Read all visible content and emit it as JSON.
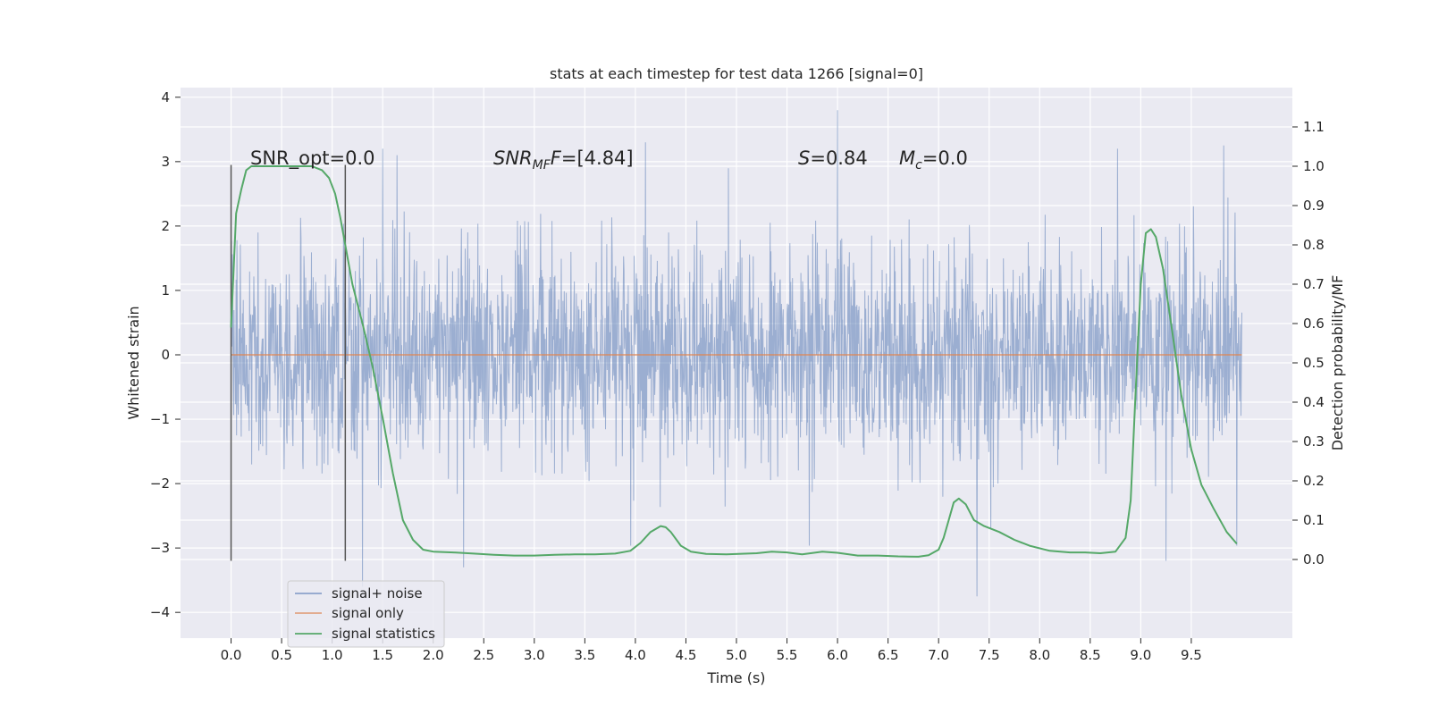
{
  "chart_data": {
    "type": "line",
    "title": "stats at each timestep for test data 1266 [signal=0]",
    "xlabel": "Time (s)",
    "ylabel": "Whitened strain",
    "ylabel_right": "Detection probability/MF",
    "xlim": [
      -0.5,
      10.5
    ],
    "ylim": [
      -4.4,
      4.15
    ],
    "ylim_right": [
      -0.2,
      1.2
    ],
    "x_ticks": [
      "0.0",
      "0.5",
      "1.0",
      "1.5",
      "2.0",
      "2.5",
      "3.0",
      "3.5",
      "4.0",
      "4.5",
      "5.0",
      "5.5",
      "6.0",
      "6.5",
      "7.0",
      "7.5",
      "8.0",
      "8.5",
      "9.0",
      "9.5"
    ],
    "y_ticks": [
      "4",
      "3",
      "2",
      "1",
      "0",
      "−1",
      "−2",
      "−3",
      "−4"
    ],
    "y_ticks_right": [
      "1.1",
      "1.0",
      "0.9",
      "0.8",
      "0.7",
      "0.6",
      "0.5",
      "0.4",
      "0.3",
      "0.2",
      "0.1",
      "0.0"
    ],
    "grid": true,
    "legend_position": "lower-left",
    "colors": {
      "background": "#eaeaf2",
      "noise": "#4c72b0",
      "signal": "#dd8452",
      "statistics": "#55a868",
      "marker": "#555555"
    },
    "annotations": {
      "snr_opt_label": "SNR_opt=0.0",
      "snr_mf_symbol": "SNR",
      "snr_mf_subscript": "MF",
      "snr_mf_rest": "=[4.84]",
      "s_symbol": "S",
      "s_rest": "=0.84",
      "mc_symbol": "M",
      "mc_subscript": "c",
      "mc_rest": "=0.0"
    },
    "markers_x": [
      0.0,
      1.13
    ],
    "series": [
      {
        "name": "signal+ noise",
        "axis": "left",
        "x_range": [
          0.0,
          10.0
        ],
        "approx_abs_max": 3.8,
        "notable_peaks": [
          [
            1.3,
            -3.6
          ],
          [
            1.5,
            3.2
          ],
          [
            1.64,
            3.1
          ],
          [
            2.3,
            -3.3
          ],
          [
            4.1,
            3.3
          ],
          [
            6.0,
            3.8
          ],
          [
            7.38,
            -3.75
          ],
          [
            8.77,
            3.2
          ],
          [
            9.25,
            -3.2
          ],
          [
            9.82,
            3.25
          ]
        ]
      },
      {
        "name": "signal only",
        "axis": "left",
        "x": [
          0.0,
          10.0
        ],
        "values": [
          0.0,
          0.0
        ]
      },
      {
        "name": "signal statistics",
        "axis": "right",
        "x": [
          0.0,
          0.05,
          0.1,
          0.15,
          0.2,
          0.3,
          0.5,
          0.7,
          0.8,
          0.9,
          0.97,
          1.03,
          1.08,
          1.13,
          1.2,
          1.3,
          1.4,
          1.5,
          1.6,
          1.7,
          1.8,
          1.9,
          2.0,
          2.2,
          2.4,
          2.6,
          2.8,
          3.0,
          3.2,
          3.4,
          3.6,
          3.8,
          3.95,
          4.05,
          4.15,
          4.25,
          4.3,
          4.35,
          4.45,
          4.55,
          4.7,
          4.9,
          5.2,
          5.35,
          5.5,
          5.65,
          5.85,
          6.0,
          6.2,
          6.4,
          6.6,
          6.8,
          6.9,
          7.0,
          7.05,
          7.1,
          7.15,
          7.2,
          7.27,
          7.35,
          7.45,
          7.6,
          7.75,
          7.9,
          8.1,
          8.3,
          8.45,
          8.6,
          8.75,
          8.85,
          8.9,
          8.95,
          9.0,
          9.05,
          9.1,
          9.15,
          9.22,
          9.3,
          9.4,
          9.5,
          9.6,
          9.72,
          9.85,
          9.95
        ],
        "values": [
          0.59,
          0.88,
          0.94,
          0.99,
          1.0,
          1.0,
          1.0,
          1.0,
          1.0,
          0.99,
          0.97,
          0.93,
          0.87,
          0.8,
          0.7,
          0.6,
          0.49,
          0.36,
          0.22,
          0.1,
          0.05,
          0.025,
          0.02,
          0.018,
          0.015,
          0.012,
          0.01,
          0.01,
          0.012,
          0.013,
          0.013,
          0.015,
          0.022,
          0.042,
          0.07,
          0.085,
          0.082,
          0.07,
          0.035,
          0.02,
          0.014,
          0.013,
          0.016,
          0.02,
          0.018,
          0.013,
          0.02,
          0.017,
          0.01,
          0.01,
          0.008,
          0.007,
          0.011,
          0.025,
          0.055,
          0.1,
          0.145,
          0.155,
          0.14,
          0.1,
          0.085,
          0.07,
          0.05,
          0.035,
          0.022,
          0.018,
          0.018,
          0.016,
          0.02,
          0.055,
          0.15,
          0.43,
          0.7,
          0.83,
          0.84,
          0.82,
          0.74,
          0.6,
          0.42,
          0.28,
          0.19,
          0.13,
          0.07,
          0.04
        ]
      }
    ]
  }
}
